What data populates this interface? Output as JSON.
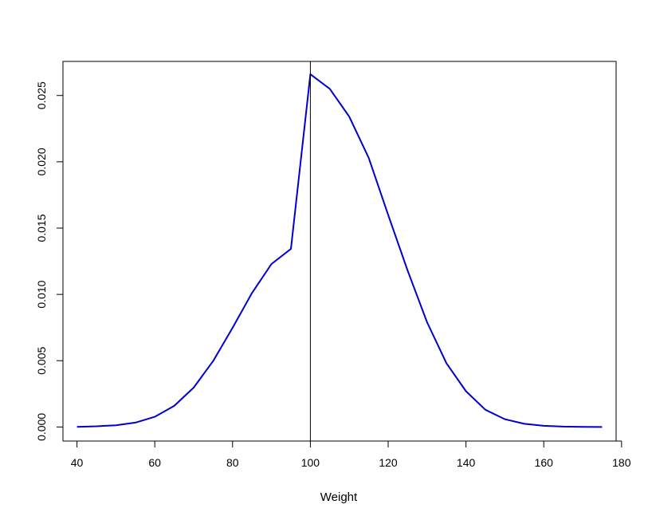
{
  "chart_data": {
    "type": "line",
    "title": "",
    "xlabel": "Weight",
    "ylabel": "",
    "xlim": [
      36.4,
      178.6
    ],
    "ylim": [
      -0.00106,
      0.02757
    ],
    "xticks": [
      40,
      60,
      80,
      100,
      120,
      140,
      160,
      180
    ],
    "xtick_labels": [
      "40",
      "60",
      "80",
      "100",
      "120",
      "140",
      "160",
      "180"
    ],
    "yticks": [
      0,
      0.005,
      0.01,
      0.015,
      0.02,
      0.025
    ],
    "ytick_labels": [
      "0.000",
      "0.005",
      "0.010",
      "0.015",
      "0.020",
      "0.025"
    ],
    "grid": false,
    "legend": "none",
    "vline": {
      "x": 100,
      "color": "#000000"
    },
    "series": [
      {
        "color": "#0000cc",
        "x": [
          40,
          45,
          50,
          55,
          60,
          65,
          70,
          75,
          80,
          85,
          90,
          95,
          100,
          105,
          110,
          115,
          120,
          125,
          130,
          135,
          140,
          145,
          150,
          155,
          160,
          165,
          170,
          175
        ],
        "y": [
          1e-05,
          5e-05,
          0.00013,
          0.00033,
          0.00077,
          0.00159,
          0.00297,
          0.00497,
          0.00748,
          0.01011,
          0.01229,
          0.01343,
          0.0266,
          0.0255,
          0.0234,
          0.0203,
          0.016,
          0.0118,
          0.0079,
          0.0048,
          0.0027,
          0.0013,
          0.00059,
          0.00024,
          9e-05,
          3e-05,
          1e-05,
          0.0
        ]
      }
    ]
  }
}
